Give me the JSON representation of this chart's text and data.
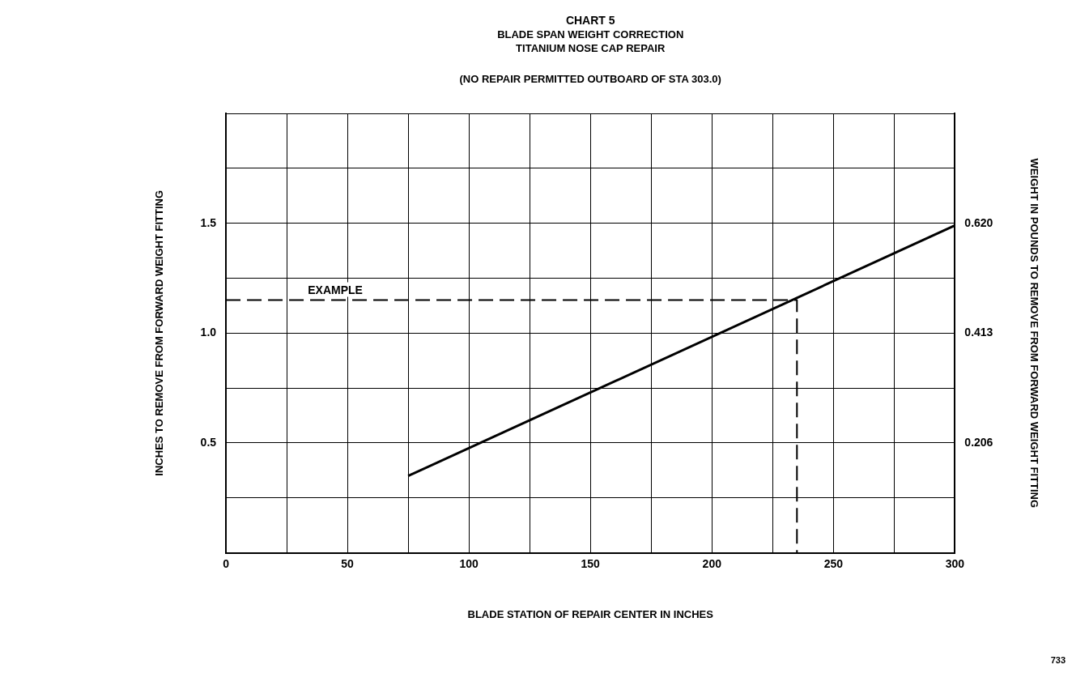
{
  "chart_data": {
    "type": "line",
    "title": "CHART 5\nBLADE SPAN WEIGHT CORRECTION\nTITANIUM NOSE CAP REPAIR",
    "subtitle": "(NO REPAIR PERMITTED OUTBOARD OF STA 303.0)",
    "xlabel": "BLADE STATION OF REPAIR CENTER IN INCHES",
    "ylabel": "INCHES TO REMOVE FROM FORWARD WEIGHT FITTING",
    "y2label": "WEIGHT IN POUNDS TO REMOVE FROM FORWARD WEIGHT FITTING",
    "xlim": [
      0,
      300
    ],
    "xticks": [
      0,
      {
        "value": 25,
        "label": null
      },
      50,
      {
        "value": 75,
        "label": null
      },
      100,
      {
        "value": 125,
        "label": null
      },
      150,
      {
        "value": 175,
        "label": null
      },
      200,
      {
        "value": 225,
        "label": null
      },
      250,
      {
        "value": 275,
        "label": null
      },
      300
    ],
    "ylim": [
      0,
      2
    ],
    "yticks": [
      {
        "value": 0,
        "label": null
      },
      {
        "value": 0.25,
        "label": null
      },
      0.5,
      {
        "value": 0.75,
        "label": null
      },
      {
        "value": 1,
        "label": "1.0"
      },
      {
        "value": 1.25,
        "label": null
      },
      1.5,
      {
        "value": 1.75,
        "label": null
      },
      {
        "value": 2,
        "label": null
      }
    ],
    "y2lim": [
      0,
      0.8267
    ],
    "y2ticks": [
      0.206,
      0.413,
      {
        "value": 0.62,
        "label": "0.620"
      }
    ],
    "series": [
      {
        "color": "#000000",
        "x": [
          75,
          300
        ],
        "values": [
          0.35,
          1.49
        ],
        "line_style": "solid"
      },
      {
        "color": "#000000",
        "x": [
          0,
          235,
          235
        ],
        "values": [
          1.15,
          1.15,
          0
        ],
        "line_style": "dashed"
      }
    ],
    "annotations": [
      {
        "text": "EXAMPLE",
        "x": 45,
        "y": 1.15
      },
      "733"
    ],
    "grid": true,
    "legend": false,
    "marker": "none"
  }
}
